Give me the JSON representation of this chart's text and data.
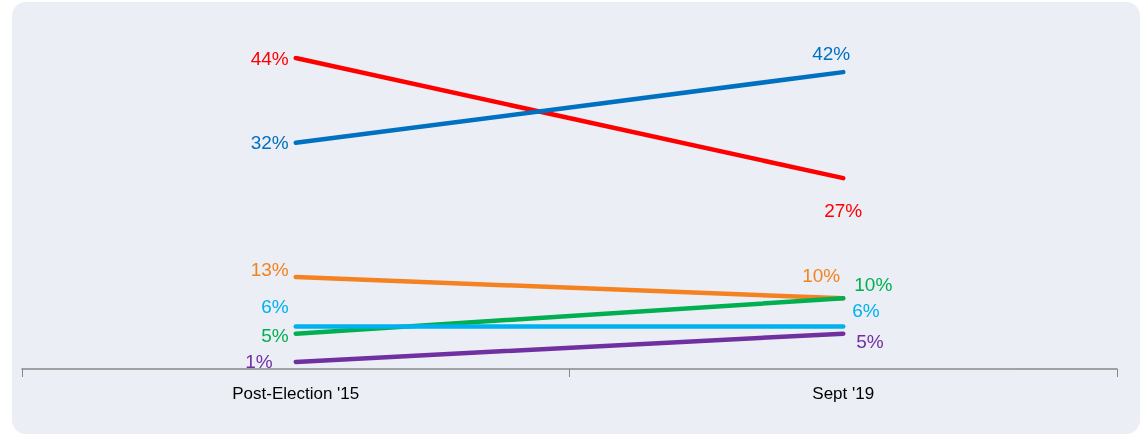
{
  "chart_data": {
    "type": "line",
    "categories": [
      "Post-Election '15",
      "Sept '19"
    ],
    "series": [
      {
        "color": "#ff0000",
        "values": [
          44,
          27
        ],
        "value_labels": [
          "44%",
          "27%"
        ]
      },
      {
        "color": "#0070c0",
        "values": [
          32,
          42
        ],
        "value_labels": [
          "32%",
          "42%"
        ]
      },
      {
        "color": "#f58220",
        "values": [
          13,
          10
        ],
        "value_labels": [
          "13%",
          "10%"
        ]
      },
      {
        "color": "#00b050",
        "values": [
          5,
          10
        ],
        "value_labels": [
          "5%",
          "10%"
        ]
      },
      {
        "color": "#00b0f0",
        "values": [
          6,
          6
        ],
        "value_labels": [
          "6%",
          "6%"
        ]
      },
      {
        "color": "#7030a0",
        "values": [
          1,
          5
        ],
        "value_labels": [
          "1%",
          "5%"
        ]
      }
    ],
    "marker": "none",
    "line_style": "solid"
  }
}
